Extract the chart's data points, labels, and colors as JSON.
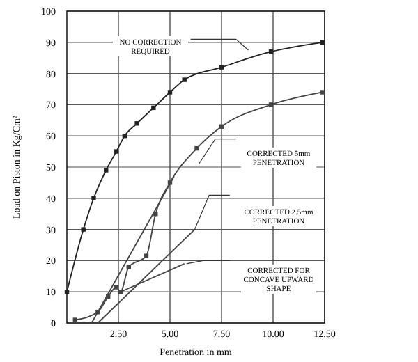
{
  "chart_data": {
    "type": "line",
    "xlabel": "Penetration in mm",
    "ylabel": "Load on Piston in Kg/Cm²",
    "xlim": [
      0,
      12.5
    ],
    "ylim": [
      0,
      100
    ],
    "xticks": [
      {
        "value": 2.5,
        "label": "2.50"
      },
      {
        "value": 5,
        "label": "5.00"
      },
      {
        "value": 7.5,
        "label": "7.50"
      },
      {
        "value": 10,
        "label": "10.00"
      },
      {
        "value": 12.5,
        "label": "12.50"
      }
    ],
    "yticks": [
      0,
      10,
      20,
      30,
      40,
      50,
      60,
      70,
      80,
      90,
      100
    ],
    "grid": true,
    "series": [
      {
        "color": "#222222",
        "marker": "square",
        "x": [
          0,
          0.8,
          1.3,
          1.9,
          2.4,
          2.8,
          3.4,
          4.2,
          5.0,
          5.7,
          7.5,
          9.9,
          12.4
        ],
        "values": [
          10,
          30,
          40,
          49,
          55,
          60,
          64,
          69,
          74,
          78,
          82,
          87,
          90
        ]
      },
      {
        "color": "#444444",
        "marker": "square",
        "x": [
          0.4,
          1.5,
          2.0,
          2.4,
          2.6,
          3.0,
          3.85,
          4.3,
          5.0,
          6.3,
          7.5,
          9.9,
          12.4
        ],
        "values": [
          1,
          3.5,
          8.5,
          11.5,
          10,
          18,
          21.5,
          35,
          45,
          56,
          63,
          70,
          74
        ]
      },
      {
        "color": "#444444",
        "marker": "none",
        "x": [
          1.2,
          5.2
        ],
        "values": [
          0,
          47
        ]
      },
      {
        "color": "#444444",
        "marker": "none",
        "x": [
          1.5,
          6.2
        ],
        "values": [
          0,
          30
        ]
      },
      {
        "color": "#444444",
        "marker": "none",
        "x": [
          2.6,
          5.7
        ],
        "values": [
          10,
          19
        ]
      }
    ],
    "annotations": [
      "NO CORRECTION REQUIRED",
      "CORRECTED 5mm PENETRATION",
      "CORRECTED 2.5mm PENETRATION",
      "CORRECTED FOR CONCAVE UPWARD SHAPE"
    ]
  }
}
